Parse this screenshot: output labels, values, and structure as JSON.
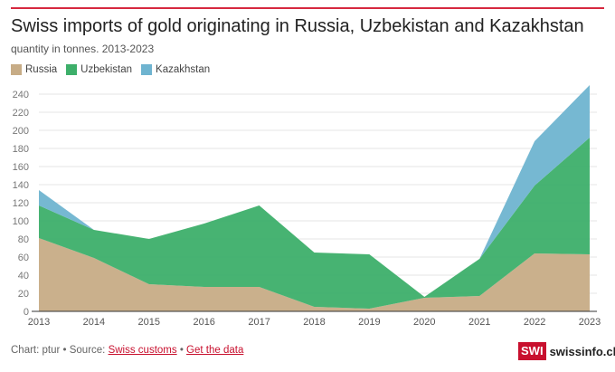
{
  "chart_data": {
    "type": "area",
    "stacked": true,
    "title": "Swiss imports of gold originating in Russia, Uzbekistan and Kazakhstan",
    "subtitle": "quantity in tonnes. 2013-2023",
    "x": [
      "2013",
      "2014",
      "2015",
      "2016",
      "2017",
      "2018",
      "2019",
      "2020",
      "2021",
      "2022",
      "2023"
    ],
    "series": [
      {
        "name": "Russia",
        "color": "#c7ac86",
        "values": [
          81,
          59,
          30,
          27,
          27,
          5,
          3,
          15,
          17,
          64,
          63
        ]
      },
      {
        "name": "Uzbekistan",
        "color": "#3daf6a",
        "values": [
          36,
          31,
          50,
          70,
          90,
          60,
          60,
          1,
          41,
          75,
          129
        ]
      },
      {
        "name": "Kazakhstan",
        "color": "#6fb4d0",
        "values": [
          17,
          0,
          0,
          0,
          0,
          0,
          0,
          0,
          0,
          49,
          58
        ]
      }
    ],
    "yticks": [
      "0",
      "20",
      "40",
      "60",
      "80",
      "100",
      "120",
      "140",
      "160",
      "180",
      "200",
      "220",
      "240"
    ],
    "ylim": [
      0,
      240
    ],
    "grid": true,
    "legend_position": "top-left"
  },
  "footer": {
    "credit": "Chart: ptur • Source: ",
    "source_link": "Swiss customs",
    "sep": " • ",
    "data_link": "Get the data"
  },
  "logo": {
    "mark": "SWI",
    "site": "swissinfo.ch"
  }
}
